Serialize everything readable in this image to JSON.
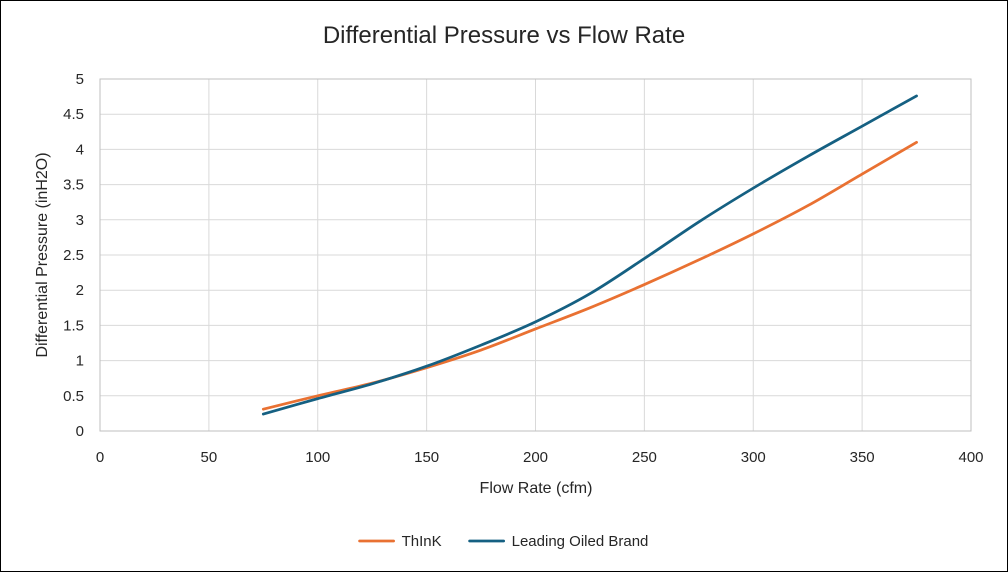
{
  "chart_data": {
    "type": "line",
    "title": "Differential Pressure vs Flow Rate",
    "xlabel": "Flow Rate (cfm)",
    "ylabel": "Differential Pressure (inH2O)",
    "xlim": [
      0,
      400
    ],
    "ylim": [
      0,
      5
    ],
    "x_ticks": [
      "0",
      "50",
      "100",
      "150",
      "200",
      "250",
      "300",
      "350",
      "400"
    ],
    "y_ticks": [
      "0",
      "0.5",
      "1",
      "1.5",
      "2",
      "2.5",
      "3",
      "3.5",
      "4",
      "4.5",
      "5"
    ],
    "grid": true,
    "legend_position": "bottom",
    "series": [
      {
        "name": "ThInK",
        "color": "#E97132",
        "x": [
          75,
          100,
          125,
          150,
          175,
          200,
          225,
          250,
          275,
          300,
          325,
          350,
          375
        ],
        "y": [
          0.31,
          0.5,
          0.68,
          0.9,
          1.15,
          1.45,
          1.75,
          2.08,
          2.43,
          2.8,
          3.2,
          3.65,
          4.1
        ]
      },
      {
        "name": "Leading Oiled Brand",
        "color": "#156082",
        "x": [
          75,
          100,
          125,
          150,
          175,
          200,
          225,
          250,
          275,
          300,
          325,
          350,
          375
        ],
        "y": [
          0.24,
          0.46,
          0.67,
          0.92,
          1.22,
          1.55,
          1.95,
          2.45,
          2.97,
          3.45,
          3.9,
          4.33,
          4.76
        ]
      }
    ]
  }
}
